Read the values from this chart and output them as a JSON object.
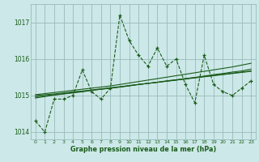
{
  "x": [
    0,
    1,
    2,
    3,
    4,
    5,
    6,
    7,
    8,
    9,
    10,
    11,
    12,
    13,
    14,
    15,
    16,
    17,
    18,
    19,
    20,
    21,
    22,
    23
  ],
  "y_main": [
    1014.3,
    1014.0,
    1014.9,
    1014.9,
    1015.0,
    1015.7,
    1015.1,
    1014.9,
    1015.2,
    1017.2,
    1016.5,
    1016.1,
    1015.8,
    1016.3,
    1015.8,
    1016.0,
    1015.3,
    1014.8,
    1016.1,
    1015.3,
    1015.1,
    1015.0,
    1015.2,
    1015.4
  ],
  "y_trend1": [
    1014.93,
    1014.97,
    1015.01,
    1015.04,
    1015.07,
    1015.1,
    1015.14,
    1015.17,
    1015.2,
    1015.23,
    1015.27,
    1015.3,
    1015.33,
    1015.36,
    1015.39,
    1015.42,
    1015.46,
    1015.49,
    1015.52,
    1015.55,
    1015.58,
    1015.61,
    1015.64,
    1015.67
  ],
  "y_trend2": [
    1014.96,
    1014.99,
    1015.02,
    1015.05,
    1015.08,
    1015.11,
    1015.14,
    1015.17,
    1015.2,
    1015.23,
    1015.26,
    1015.3,
    1015.33,
    1015.36,
    1015.39,
    1015.42,
    1015.45,
    1015.48,
    1015.51,
    1015.54,
    1015.57,
    1015.6,
    1015.63,
    1015.66
  ],
  "y_trend3": [
    1015.0,
    1015.02,
    1015.04,
    1015.07,
    1015.1,
    1015.12,
    1015.15,
    1015.18,
    1015.21,
    1015.24,
    1015.27,
    1015.3,
    1015.33,
    1015.36,
    1015.4,
    1015.43,
    1015.46,
    1015.49,
    1015.53,
    1015.57,
    1015.6,
    1015.64,
    1015.67,
    1015.72
  ],
  "y_trend4": [
    1015.02,
    1015.05,
    1015.08,
    1015.11,
    1015.14,
    1015.17,
    1015.2,
    1015.23,
    1015.26,
    1015.3,
    1015.34,
    1015.38,
    1015.42,
    1015.46,
    1015.5,
    1015.54,
    1015.58,
    1015.62,
    1015.66,
    1015.7,
    1015.74,
    1015.78,
    1015.83,
    1015.88
  ],
  "line_color": "#1a5c1a",
  "bg_color": "#cce8e8",
  "grid_color": "#99bbbb",
  "text_color": "#1a5c1a",
  "xlabel": "Graphe pression niveau de la mer (hPa)",
  "ylim": [
    1013.8,
    1017.5
  ],
  "xlim": [
    -0.5,
    23.5
  ],
  "yticks": [
    1014,
    1015,
    1016,
    1017
  ],
  "xticks": [
    0,
    1,
    2,
    3,
    4,
    5,
    6,
    7,
    8,
    9,
    10,
    11,
    12,
    13,
    14,
    15,
    16,
    17,
    18,
    19,
    20,
    21,
    22,
    23
  ]
}
